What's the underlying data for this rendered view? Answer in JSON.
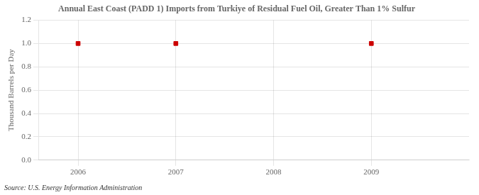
{
  "chart_data": {
    "type": "scatter",
    "title": "Annual East Coast (PADD 1) Imports from Turkiye of Residual Fuel Oil, Greater Than 1% Sulfur",
    "ylabel": "Thousand Barrels per Day",
    "source": "Source: U.S. Energy Information Administration",
    "x": [
      2006,
      2007,
      2009
    ],
    "values": [
      1.0,
      1.0,
      1.0
    ],
    "color": "#cc0000",
    "marker": "square",
    "xlim": [
      2005.6,
      2010.0
    ],
    "xticks": [
      2006,
      2007,
      2008,
      2009
    ],
    "ylim": [
      0.0,
      1.2
    ],
    "yticks": [
      {
        "value": 0.0,
        "label": "0.0"
      },
      0.2,
      0.4,
      0.6,
      0.8,
      {
        "value": 1.0,
        "label": "1.0"
      },
      1.2
    ],
    "grid": true
  }
}
